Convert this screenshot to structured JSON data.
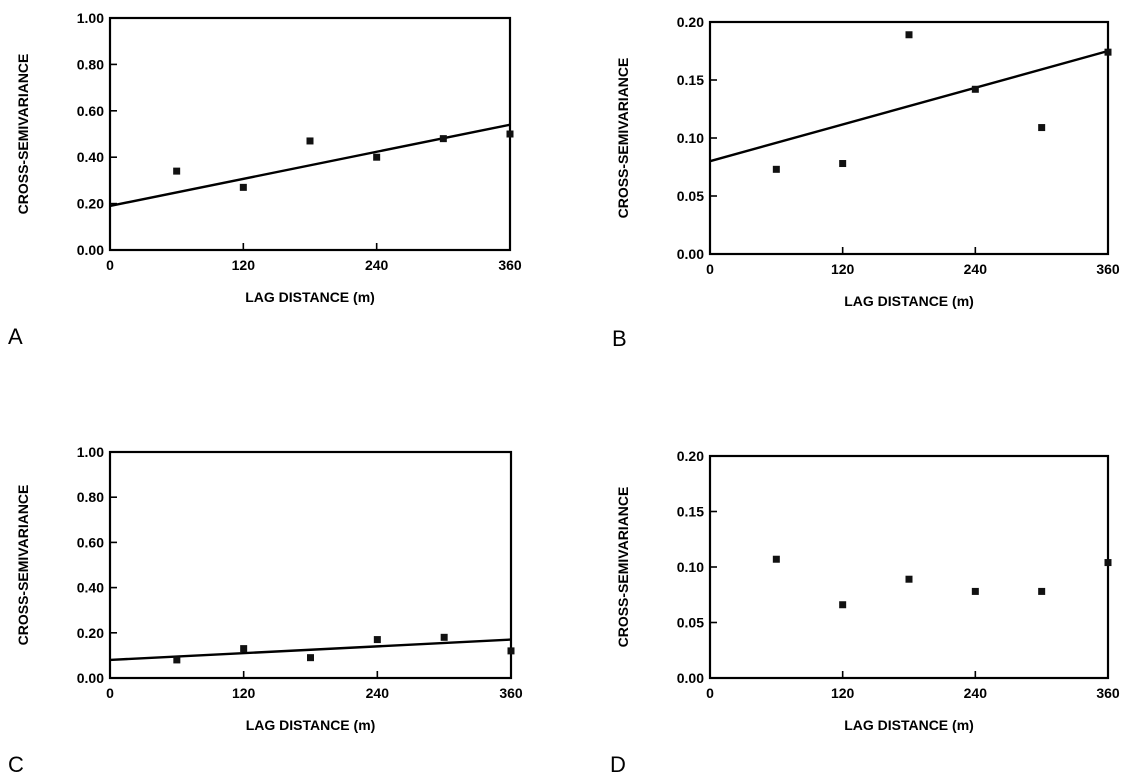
{
  "chart_data": [
    {
      "panel": "A",
      "type": "scatter",
      "xlabel": "LAG DISTANCE (m)",
      "ylabel": "CROSS-SEMIVARIANCE",
      "xlim": [
        0,
        360
      ],
      "ylim": [
        0,
        1.0
      ],
      "xticks": [
        0,
        120,
        240,
        360
      ],
      "yticks": [
        0.0,
        0.2,
        0.4,
        0.6,
        0.8,
        1.0
      ],
      "xtick_labels": [
        "0",
        "120",
        "240",
        "360"
      ],
      "ytick_labels": [
        "0.00",
        "0.20",
        "0.40",
        "0.60",
        "0.80",
        "1.00"
      ],
      "x": [
        60,
        120,
        180,
        240,
        300,
        360
      ],
      "y": [
        0.34,
        0.27,
        0.47,
        0.4,
        0.48,
        0.5
      ],
      "fit_line": {
        "x": [
          0,
          360
        ],
        "y": [
          0.19,
          0.54
        ]
      },
      "grid": false
    },
    {
      "panel": "B",
      "type": "scatter",
      "xlabel": "LAG DISTANCE (m)",
      "ylabel": "CROSS-SEMIVARIANCE",
      "xlim": [
        0,
        360
      ],
      "ylim": [
        0,
        0.2
      ],
      "xticks": [
        0,
        120,
        240,
        360
      ],
      "yticks": [
        0.0,
        0.05,
        0.1,
        0.15,
        0.2
      ],
      "xtick_labels": [
        "0",
        "120",
        "240",
        "360"
      ],
      "ytick_labels": [
        "0.00",
        "0.05",
        "0.10",
        "0.15",
        "0.20"
      ],
      "x": [
        60,
        120,
        180,
        240,
        300,
        360
      ],
      "y": [
        0.073,
        0.078,
        0.189,
        0.142,
        0.109,
        0.174
      ],
      "fit_line": {
        "x": [
          0,
          360
        ],
        "y": [
          0.08,
          0.175
        ]
      },
      "grid": false
    },
    {
      "panel": "C",
      "type": "scatter",
      "xlabel": "LAG DISTANCE (m)",
      "ylabel": "CROSS-SEMIVARIANCE",
      "xlim": [
        0,
        360
      ],
      "ylim": [
        0,
        1.0
      ],
      "xticks": [
        0,
        120,
        240,
        360
      ],
      "yticks": [
        0.0,
        0.2,
        0.4,
        0.6,
        0.8,
        1.0
      ],
      "xtick_labels": [
        "0",
        "120",
        "240",
        "360"
      ],
      "ytick_labels": [
        "0.00",
        "0.20",
        "0.40",
        "0.60",
        "0.80",
        "1.00"
      ],
      "x": [
        60,
        120,
        180,
        240,
        300,
        360
      ],
      "y": [
        0.08,
        0.13,
        0.09,
        0.17,
        0.18,
        0.12
      ],
      "fit_line": {
        "x": [
          0,
          360
        ],
        "y": [
          0.08,
          0.17
        ]
      },
      "grid": false
    },
    {
      "panel": "D",
      "type": "scatter",
      "xlabel": "LAG DISTANCE (m)",
      "ylabel": "CROSS-SEMIVARIANCE",
      "xlim": [
        0,
        360
      ],
      "ylim": [
        0,
        0.2
      ],
      "xticks": [
        0,
        120,
        240,
        360
      ],
      "yticks": [
        0.0,
        0.05,
        0.1,
        0.15,
        0.2
      ],
      "xtick_labels": [
        "0",
        "120",
        "240",
        "360"
      ],
      "ytick_labels": [
        "0.00",
        "0.05",
        "0.10",
        "0.15",
        "0.20"
      ],
      "x": [
        60,
        120,
        180,
        240,
        300,
        360
      ],
      "y": [
        0.107,
        0.066,
        0.089,
        0.078,
        0.078,
        0.104
      ],
      "fit_line": null,
      "grid": false
    }
  ]
}
